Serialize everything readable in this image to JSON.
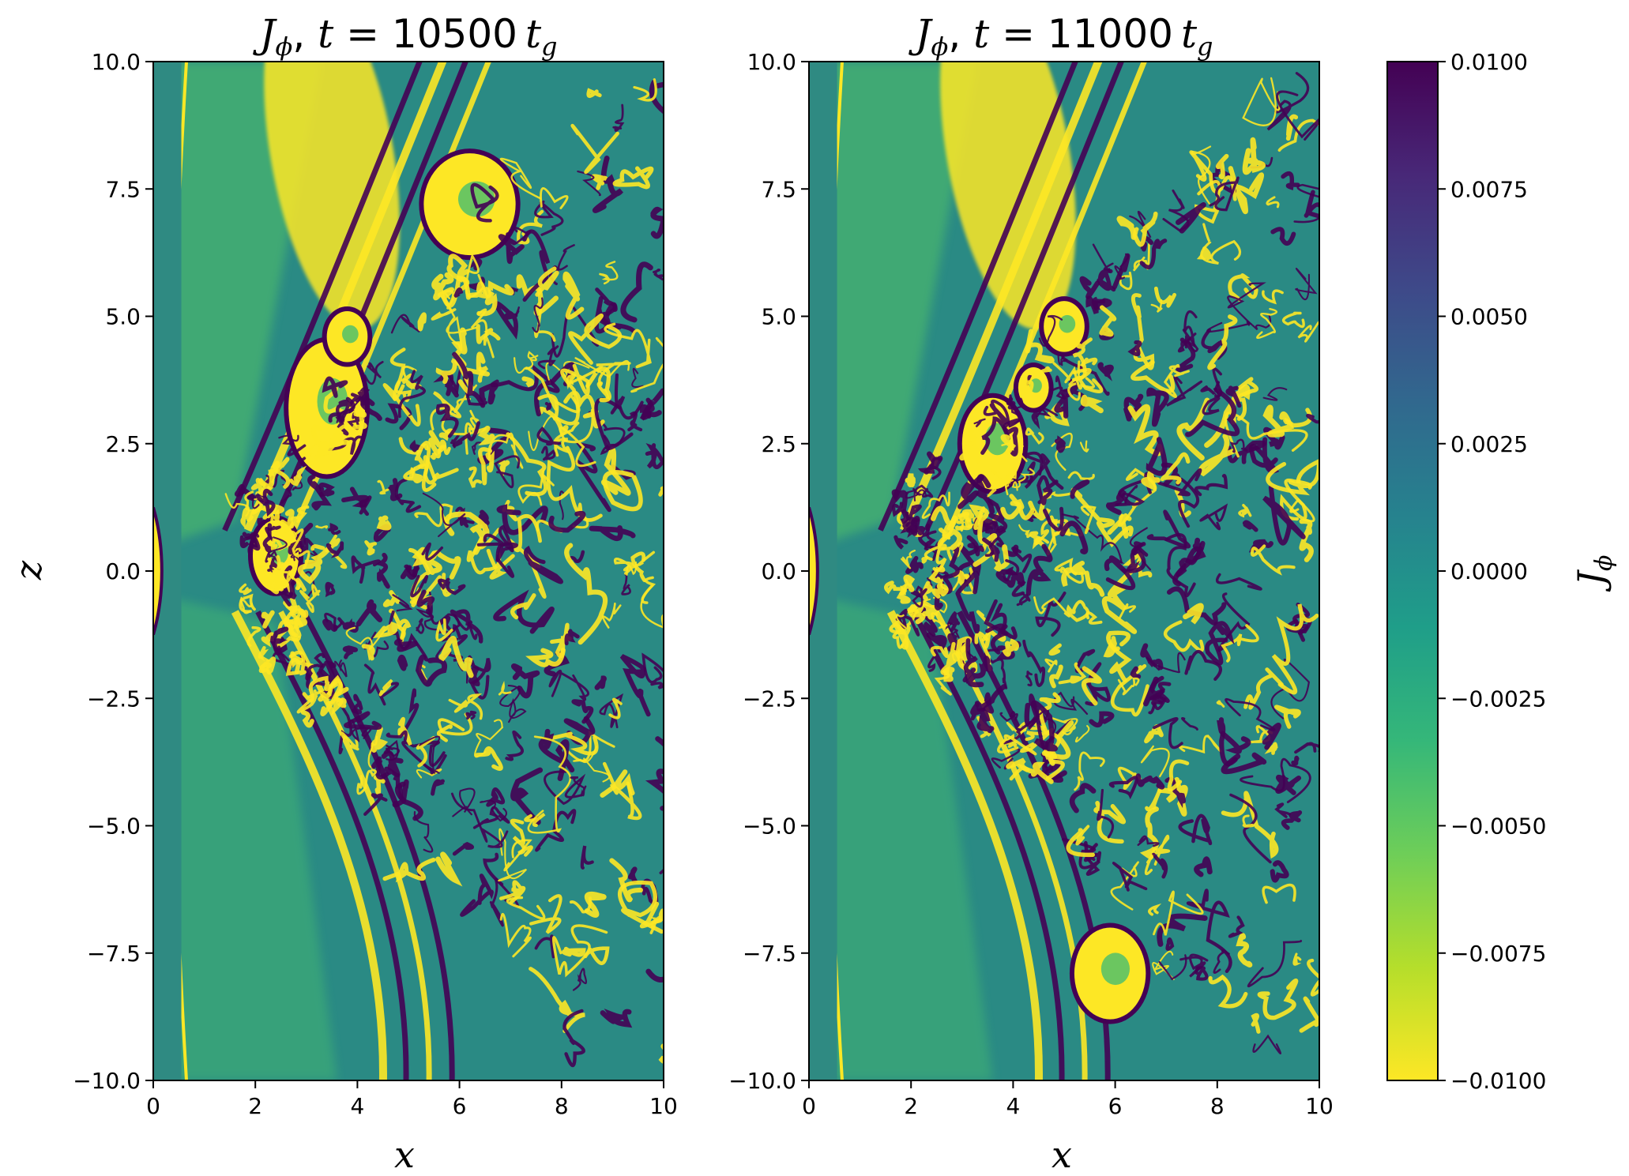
{
  "chart_data": {
    "type": "heatmap",
    "panels": [
      {
        "title_quantity": "J",
        "title_quantity_sub": "ϕ",
        "title_time_var": "t",
        "title_equals": " = ",
        "title_time_value": "10500",
        "title_time_unit": "t",
        "title_time_unit_sub": "g",
        "xlabel": "x",
        "ylabel": "z",
        "xlim": [
          0,
          10
        ],
        "ylim": [
          -10,
          10
        ],
        "xticks": [
          0,
          2,
          4,
          6,
          8,
          10
        ],
        "yticks": [
          -10.0,
          -7.5,
          -5.0,
          -2.5,
          0.0,
          2.5,
          5.0,
          7.5,
          10.0
        ],
        "xtick_labels": [
          "0",
          "2",
          "4",
          "6",
          "8",
          "10"
        ],
        "ytick_labels": [
          "−10.0",
          "−7.5",
          "−5.0",
          "−2.5",
          "0.0",
          "2.5",
          "5.0",
          "7.5",
          "10.0"
        ]
      },
      {
        "title_quantity": "J",
        "title_quantity_sub": "ϕ",
        "title_time_var": "t",
        "title_equals": " = ",
        "title_time_value": "11000",
        "title_time_unit": "t",
        "title_time_unit_sub": "g",
        "xlabel": "x",
        "ylabel": "",
        "xlim": [
          0,
          10
        ],
        "ylim": [
          -10,
          10
        ],
        "xticks": [
          0,
          2,
          4,
          6,
          8,
          10
        ],
        "yticks": [
          -10.0,
          -7.5,
          -5.0,
          -2.5,
          0.0,
          2.5,
          5.0,
          7.5,
          10.0
        ],
        "xtick_labels": [
          "0",
          "2",
          "4",
          "6",
          "8",
          "10"
        ],
        "ytick_labels": [
          "−10.0",
          "−7.5",
          "−5.0",
          "−2.5",
          "0.0",
          "2.5",
          "5.0",
          "7.5",
          "10.0"
        ]
      }
    ],
    "colorbar": {
      "label": "J",
      "label_sub": "ϕ",
      "colormap": "viridis",
      "vmin": -0.01,
      "vmax": 0.01,
      "ticks": [
        -0.01,
        -0.0075,
        -0.005,
        -0.0025,
        0.0,
        0.0025,
        0.005,
        0.0075,
        0.01
      ],
      "tick_labels": [
        "−0.0100",
        "−0.0075",
        "−0.0050",
        "−0.0025",
        "0.0000",
        "0.0025",
        "0.0050",
        "0.0075",
        "0.0100"
      ],
      "colors": [
        "#fde725",
        "#b5de2b",
        "#6ece58",
        "#35b779",
        "#1f9e89",
        "#26828e",
        "#31688e",
        "#3e4989",
        "#482878",
        "#440154"
      ]
    },
    "background_color": "#2a8a84"
  }
}
